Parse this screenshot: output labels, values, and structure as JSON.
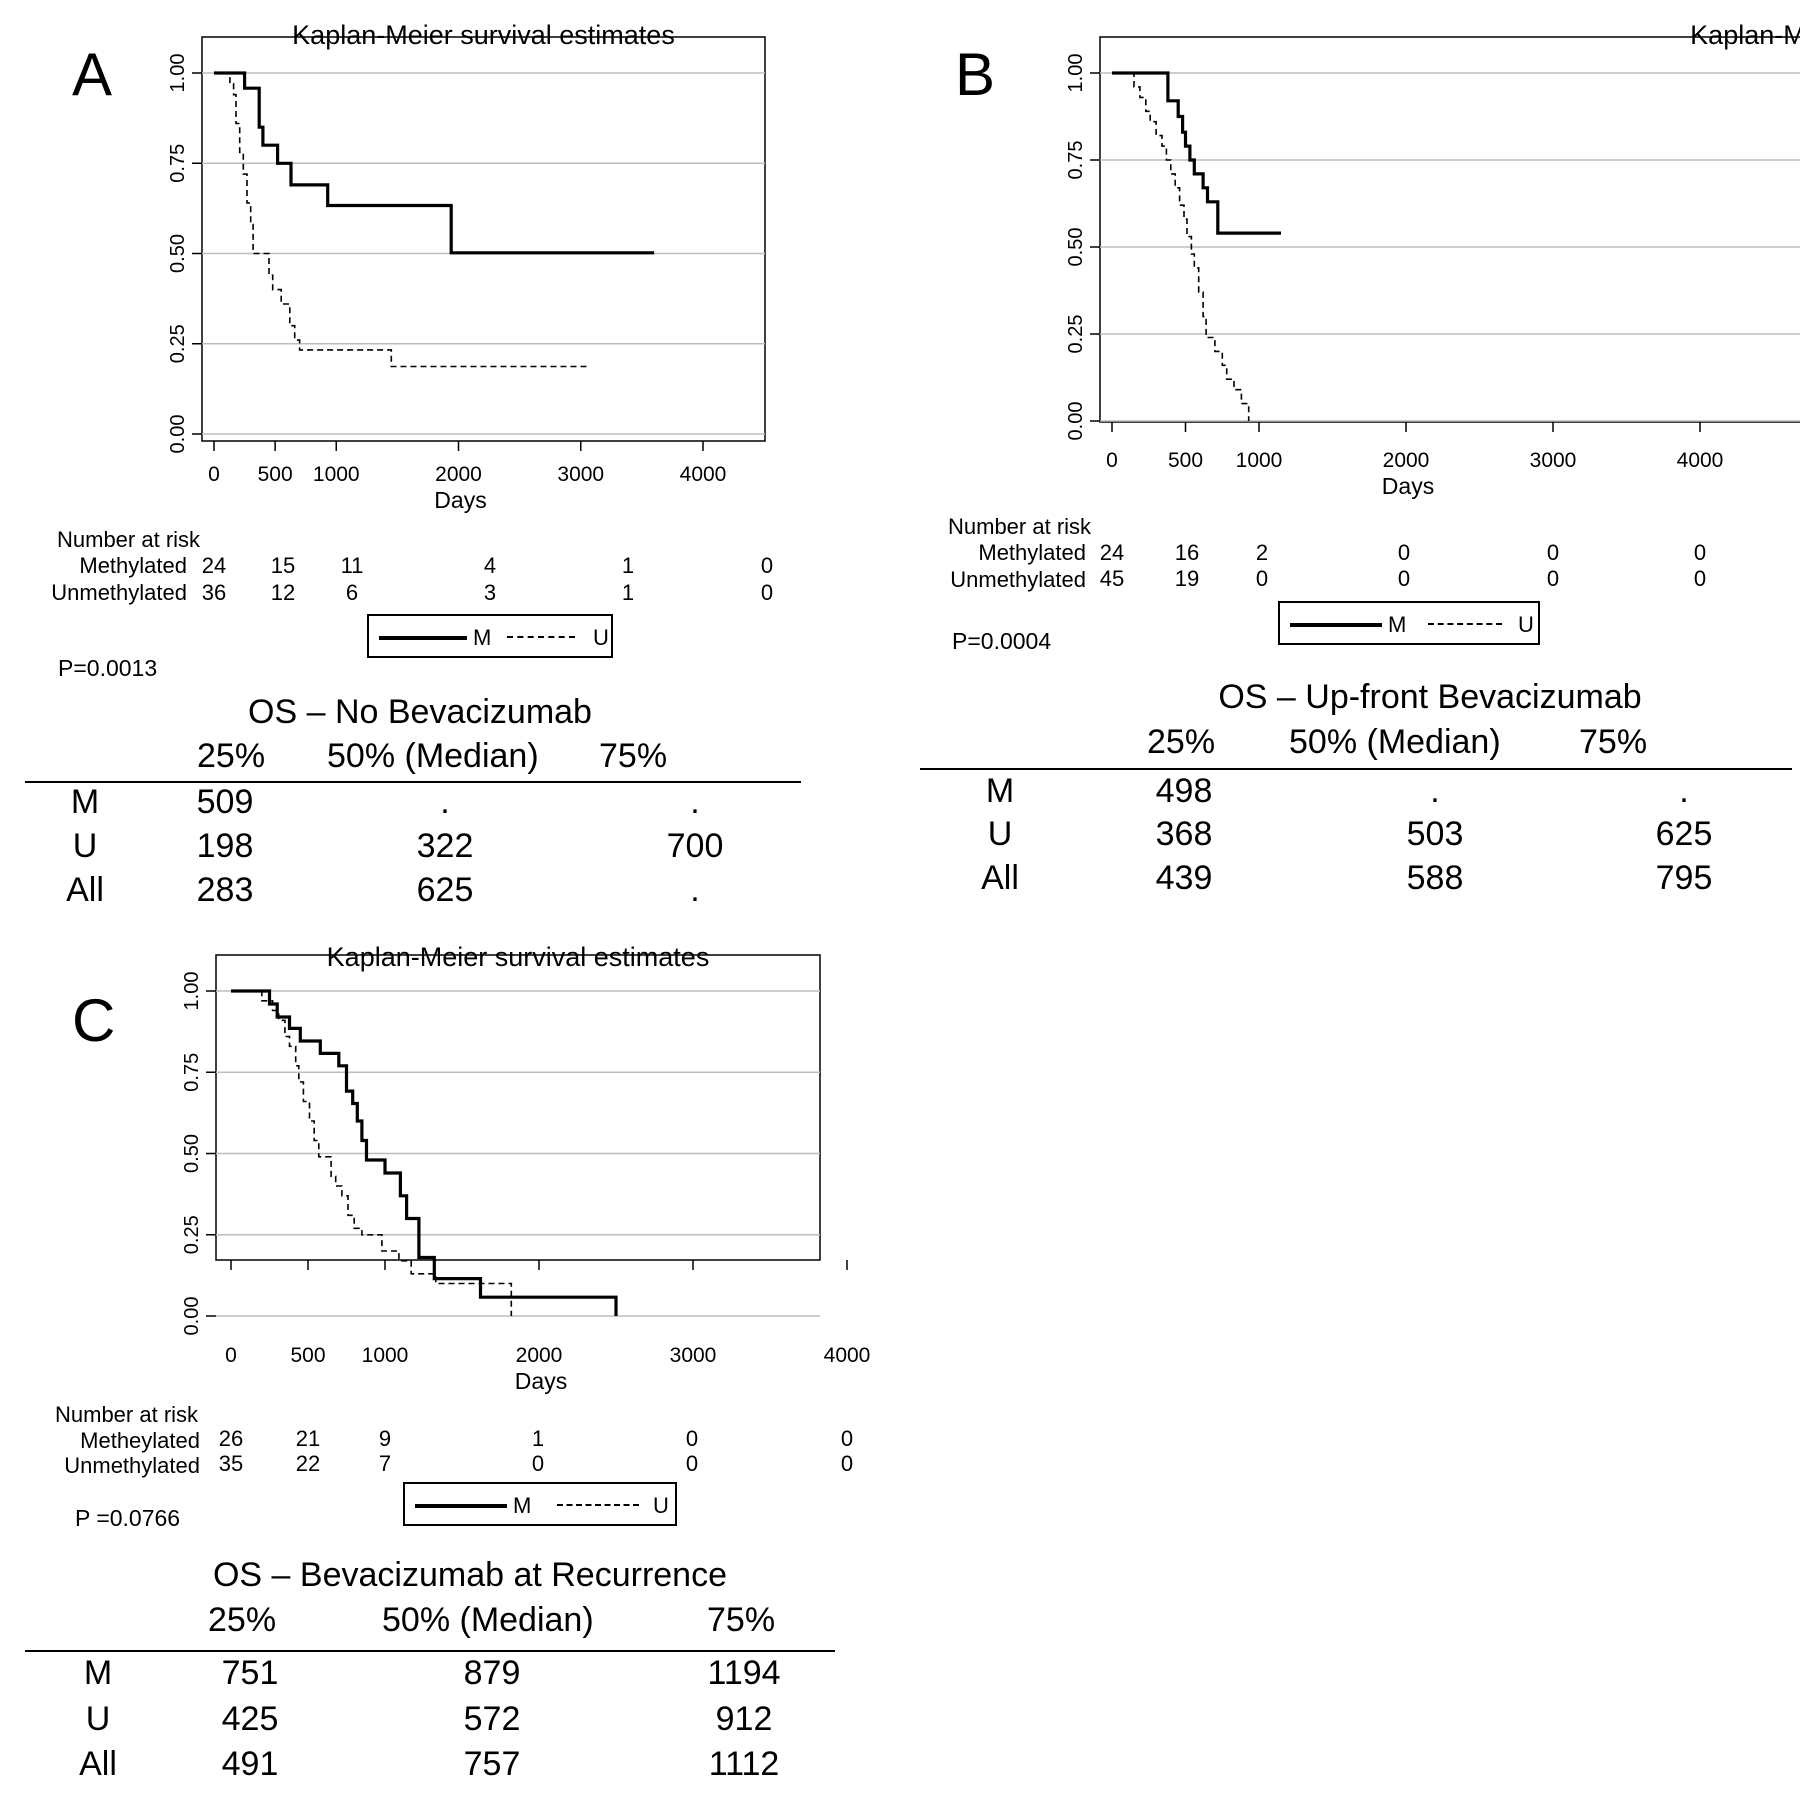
{
  "panels": [
    {
      "letter": "A",
      "title": "Kaplan-Meier survival estimates",
      "xlabel": "Days",
      "risk_header": "Number at risk",
      "risk": [
        {
          "label": "Methylated",
          "values": [
            "24",
            "15",
            "11",
            "4",
            "1",
            "0"
          ]
        },
        {
          "label": "Unmethylated",
          "values": [
            "36",
            "12",
            "6",
            "3",
            "1",
            "0"
          ]
        }
      ],
      "legend": {
        "m": "M",
        "u": "U"
      },
      "pvalue": "P=0.0013",
      "table": {
        "title": "OS – No Bevacizumab",
        "cols": [
          "25%",
          "50% (Median)",
          "75%"
        ],
        "rows": [
          {
            "label": "M",
            "cells": [
              "509",
              ".",
              "."
            ]
          },
          {
            "label": "U",
            "cells": [
              "198",
              "322",
              "700"
            ]
          },
          {
            "label": "All",
            "cells": [
              "283",
              "625",
              "."
            ]
          }
        ]
      }
    },
    {
      "letter": "B",
      "title": "Kaplan-Meier survival estimates",
      "xlabel": "Days",
      "risk_header": "Number at risk",
      "risk": [
        {
          "label": "Methylated",
          "values": [
            "24",
            "16",
            "2",
            "0",
            "0",
            "0"
          ]
        },
        {
          "label": "Unmethylated",
          "values": [
            "45",
            "19",
            "0",
            "0",
            "0",
            "0"
          ]
        }
      ],
      "legend": {
        "m": "M",
        "u": "U"
      },
      "pvalue": "P=0.0004",
      "table": {
        "title": "OS – Up-front Bevacizumab",
        "cols": [
          "25%",
          "50% (Median)",
          "75%"
        ],
        "rows": [
          {
            "label": "M",
            "cells": [
              "498",
              ".",
              "."
            ]
          },
          {
            "label": "U",
            "cells": [
              "368",
              "503",
              "625"
            ]
          },
          {
            "label": "All",
            "cells": [
              "439",
              "588",
              "795"
            ]
          }
        ]
      }
    },
    {
      "letter": "C",
      "title": "Kaplan-Meier survival estimates",
      "xlabel": "Days",
      "risk_header": "Number at risk",
      "risk": [
        {
          "label": "Metheylated",
          "values": [
            "26",
            "21",
            "9",
            "1",
            "0",
            "0"
          ]
        },
        {
          "label": "Unmethylated",
          "values": [
            "35",
            "22",
            "7",
            "0",
            "0",
            "0"
          ]
        }
      ],
      "legend": {
        "m": "M",
        "u": "U"
      },
      "pvalue": "P =0.0766",
      "table": {
        "title": "OS – Bevacizumab at Recurrence",
        "cols": [
          "25%",
          "50% (Median)",
          "75%"
        ],
        "rows": [
          {
            "label": "M",
            "cells": [
              "751",
              "879",
              "1194"
            ]
          },
          {
            "label": "U",
            "cells": [
              "425",
              "572",
              "912"
            ]
          },
          {
            "label": "All",
            "cells": [
              "491",
              "757",
              "1112"
            ]
          }
        ]
      }
    }
  ],
  "chart_data": [
    {
      "type": "line",
      "title": "Kaplan-Meier survival estimates",
      "xlabel": "Days",
      "ylabel": "",
      "xlim": [
        0,
        4000
      ],
      "ylim": [
        0,
        1
      ],
      "x_ticks": [
        0,
        500,
        1000,
        2000,
        3000,
        4000
      ],
      "y_ticks": [
        "0.00",
        "0.25",
        "0.50",
        "0.75",
        "1.00"
      ],
      "grid": "horizontal",
      "series": [
        {
          "name": "M",
          "style": "solid",
          "points": [
            [
              0,
              1
            ],
            [
              250,
              1
            ],
            [
              250,
              0.958
            ],
            [
              370,
              0.958
            ],
            [
              370,
              0.85
            ],
            [
              400,
              0.85
            ],
            [
              400,
              0.8
            ],
            [
              520,
              0.8
            ],
            [
              520,
              0.75
            ],
            [
              630,
              0.75
            ],
            [
              630,
              0.69
            ],
            [
              930,
              0.69
            ],
            [
              930,
              0.633
            ],
            [
              1940,
              0.633
            ],
            [
              1940,
              0.502
            ],
            [
              3600,
              0.502
            ]
          ]
        },
        {
          "name": "U",
          "style": "dashed",
          "points": [
            [
              0,
              1
            ],
            [
              130,
              1
            ],
            [
              130,
              0.97
            ],
            [
              160,
              0.97
            ],
            [
              160,
              0.94
            ],
            [
              180,
              0.94
            ],
            [
              180,
              0.86
            ],
            [
              210,
              0.86
            ],
            [
              210,
              0.78
            ],
            [
              240,
              0.78
            ],
            [
              240,
              0.72
            ],
            [
              270,
              0.72
            ],
            [
              270,
              0.64
            ],
            [
              300,
              0.64
            ],
            [
              300,
              0.58
            ],
            [
              320,
              0.58
            ],
            [
              320,
              0.5
            ],
            [
              450,
              0.5
            ],
            [
              450,
              0.44
            ],
            [
              480,
              0.44
            ],
            [
              480,
              0.4
            ],
            [
              550,
              0.4
            ],
            [
              550,
              0.36
            ],
            [
              620,
              0.36
            ],
            [
              620,
              0.3
            ],
            [
              660,
              0.3
            ],
            [
              660,
              0.26
            ],
            [
              700,
              0.26
            ],
            [
              700,
              0.233
            ],
            [
              1450,
              0.233
            ],
            [
              1450,
              0.187
            ],
            [
              3050,
              0.187
            ]
          ]
        }
      ]
    },
    {
      "type": "line",
      "title": "Kaplan-Meier survival estimates",
      "xlabel": "Days",
      "ylabel": "",
      "xlim": [
        0,
        4000
      ],
      "ylim": [
        0,
        1
      ],
      "x_ticks": [
        0,
        500,
        1000,
        2000,
        3000,
        4000
      ],
      "y_ticks": [
        "0.00",
        "0.25",
        "0.50",
        "0.75",
        "1.00"
      ],
      "grid": "horizontal",
      "series": [
        {
          "name": "M",
          "style": "solid",
          "points": [
            [
              0,
              1
            ],
            [
              380,
              1
            ],
            [
              380,
              0.92
            ],
            [
              450,
              0.92
            ],
            [
              450,
              0.875
            ],
            [
              480,
              0.875
            ],
            [
              480,
              0.83
            ],
            [
              500,
              0.83
            ],
            [
              500,
              0.79
            ],
            [
              530,
              0.79
            ],
            [
              530,
              0.75
            ],
            [
              560,
              0.75
            ],
            [
              560,
              0.71
            ],
            [
              620,
              0.71
            ],
            [
              620,
              0.67
            ],
            [
              650,
              0.67
            ],
            [
              650,
              0.63
            ],
            [
              720,
              0.63
            ],
            [
              720,
              0.54
            ],
            [
              1150,
              0.54
            ]
          ]
        },
        {
          "name": "U",
          "style": "dashed",
          "points": [
            [
              0,
              1
            ],
            [
              150,
              1
            ],
            [
              150,
              0.96
            ],
            [
              190,
              0.96
            ],
            [
              190,
              0.93
            ],
            [
              230,
              0.93
            ],
            [
              230,
              0.89
            ],
            [
              260,
              0.89
            ],
            [
              260,
              0.86
            ],
            [
              300,
              0.86
            ],
            [
              300,
              0.82
            ],
            [
              340,
              0.82
            ],
            [
              340,
              0.79
            ],
            [
              370,
              0.79
            ],
            [
              370,
              0.75
            ],
            [
              400,
              0.75
            ],
            [
              400,
              0.71
            ],
            [
              430,
              0.71
            ],
            [
              430,
              0.67
            ],
            [
              460,
              0.67
            ],
            [
              460,
              0.62
            ],
            [
              490,
              0.62
            ],
            [
              490,
              0.58
            ],
            [
              510,
              0.58
            ],
            [
              510,
              0.53
            ],
            [
              540,
              0.53
            ],
            [
              540,
              0.48
            ],
            [
              560,
              0.48
            ],
            [
              560,
              0.44
            ],
            [
              590,
              0.44
            ],
            [
              590,
              0.37
            ],
            [
              620,
              0.37
            ],
            [
              620,
              0.3
            ],
            [
              640,
              0.3
            ],
            [
              640,
              0.24
            ],
            [
              700,
              0.24
            ],
            [
              700,
              0.2
            ],
            [
              750,
              0.2
            ],
            [
              750,
              0.16
            ],
            [
              780,
              0.16
            ],
            [
              780,
              0.12
            ],
            [
              830,
              0.12
            ],
            [
              830,
              0.09
            ],
            [
              880,
              0.09
            ],
            [
              880,
              0.05
            ],
            [
              930,
              0.05
            ],
            [
              930,
              0.0
            ]
          ]
        }
      ]
    },
    {
      "type": "line",
      "title": "Kaplan-Meier survival estimates",
      "xlabel": "Days",
      "ylabel": "",
      "xlim": [
        0,
        4000
      ],
      "ylim": [
        0,
        1
      ],
      "x_ticks": [
        0,
        500,
        1000,
        2000,
        3000,
        4000
      ],
      "y_ticks": [
        "0.00",
        "0.25",
        "0.50",
        "0.75",
        "1.00"
      ],
      "grid": "horizontal",
      "series": [
        {
          "name": "M",
          "style": "solid",
          "points": [
            [
              0,
              1
            ],
            [
              250,
              1
            ],
            [
              250,
              0.96
            ],
            [
              300,
              0.96
            ],
            [
              300,
              0.92
            ],
            [
              380,
              0.92
            ],
            [
              380,
              0.885
            ],
            [
              450,
              0.885
            ],
            [
              450,
              0.846
            ],
            [
              580,
              0.846
            ],
            [
              580,
              0.808
            ],
            [
              700,
              0.808
            ],
            [
              700,
              0.77
            ],
            [
              750,
              0.77
            ],
            [
              750,
              0.692
            ],
            [
              790,
              0.692
            ],
            [
              790,
              0.654
            ],
            [
              820,
              0.654
            ],
            [
              820,
              0.6
            ],
            [
              850,
              0.6
            ],
            [
              850,
              0.54
            ],
            [
              880,
              0.54
            ],
            [
              880,
              0.48
            ],
            [
              1000,
              0.48
            ],
            [
              1000,
              0.44
            ],
            [
              1100,
              0.44
            ],
            [
              1100,
              0.37
            ],
            [
              1140,
              0.37
            ],
            [
              1140,
              0.3
            ],
            [
              1220,
              0.3
            ],
            [
              1220,
              0.18
            ],
            [
              1320,
              0.18
            ],
            [
              1320,
              0.115
            ],
            [
              1620,
              0.115
            ],
            [
              1620,
              0.058
            ],
            [
              2500,
              0.058
            ],
            [
              2500,
              0.0
            ]
          ]
        },
        {
          "name": "U",
          "style": "dashed",
          "points": [
            [
              0,
              1
            ],
            [
              200,
              1
            ],
            [
              200,
              0.97
            ],
            [
              270,
              0.97
            ],
            [
              270,
              0.94
            ],
            [
              310,
              0.94
            ],
            [
              310,
              0.91
            ],
            [
              350,
              0.91
            ],
            [
              350,
              0.86
            ],
            [
              380,
              0.86
            ],
            [
              380,
              0.83
            ],
            [
              420,
              0.83
            ],
            [
              420,
              0.77
            ],
            [
              440,
              0.77
            ],
            [
              440,
              0.72
            ],
            [
              470,
              0.72
            ],
            [
              470,
              0.66
            ],
            [
              510,
              0.66
            ],
            [
              510,
              0.6
            ],
            [
              540,
              0.6
            ],
            [
              540,
              0.54
            ],
            [
              570,
              0.54
            ],
            [
              570,
              0.49
            ],
            [
              650,
              0.49
            ],
            [
              650,
              0.43
            ],
            [
              680,
              0.43
            ],
            [
              680,
              0.4
            ],
            [
              720,
              0.4
            ],
            [
              720,
              0.37
            ],
            [
              760,
              0.37
            ],
            [
              760,
              0.31
            ],
            [
              800,
              0.31
            ],
            [
              800,
              0.27
            ],
            [
              850,
              0.27
            ],
            [
              850,
              0.25
            ],
            [
              980,
              0.25
            ],
            [
              980,
              0.2
            ],
            [
              1090,
              0.2
            ],
            [
              1090,
              0.17
            ],
            [
              1170,
              0.17
            ],
            [
              1170,
              0.13
            ],
            [
              1330,
              0.13
            ],
            [
              1330,
              0.1
            ],
            [
              1820,
              0.1
            ],
            [
              1820,
              0.0
            ]
          ]
        }
      ]
    }
  ]
}
